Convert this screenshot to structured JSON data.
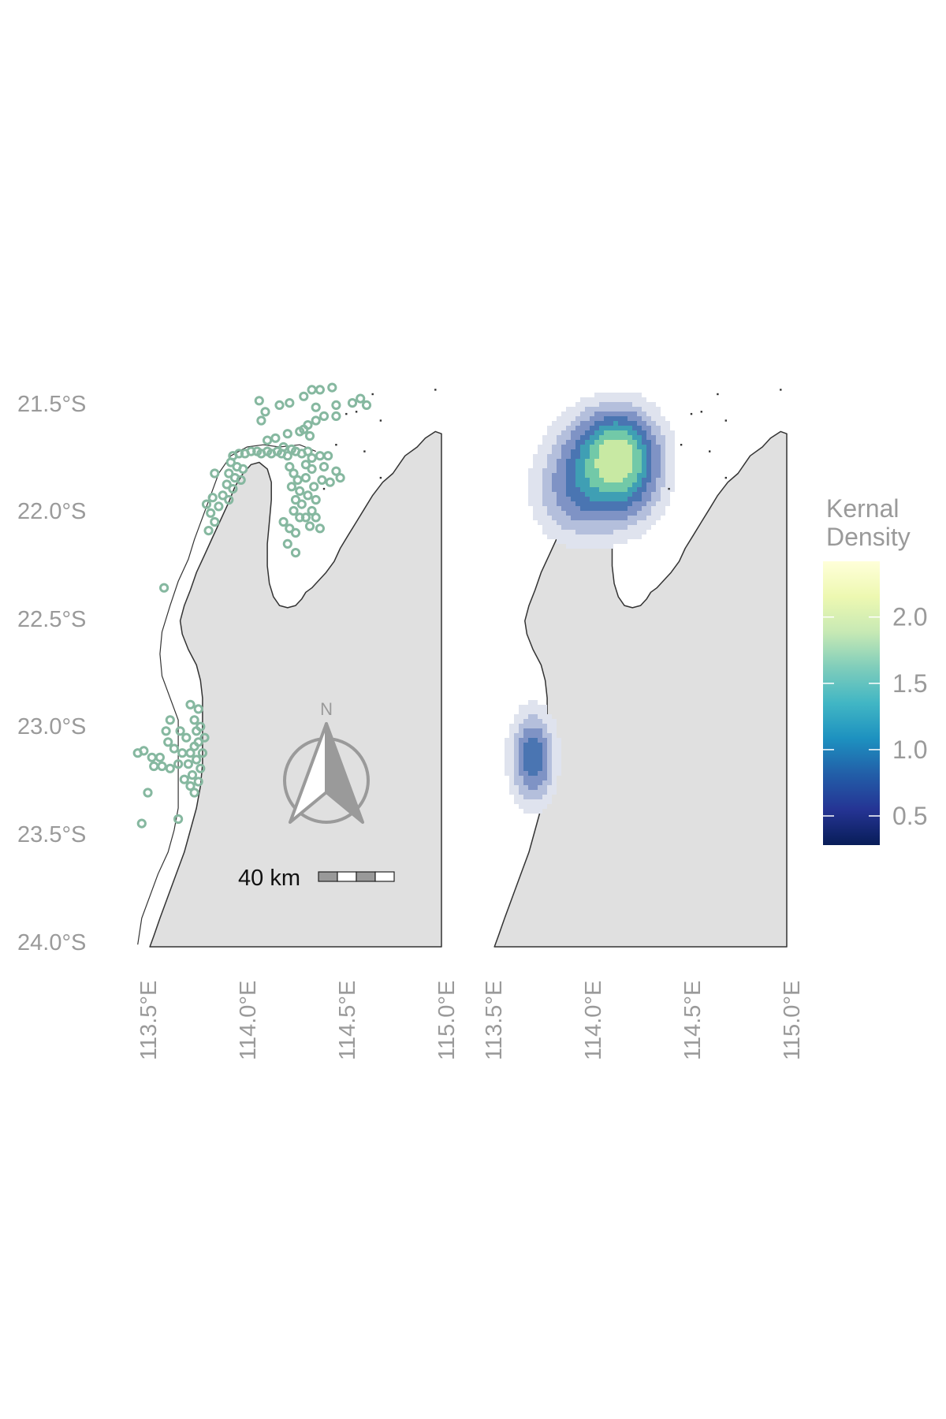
{
  "colors": {
    "land": "#e0e0e0",
    "coast": "#333333",
    "points": "#86b8a0",
    "axis_text": "#9a9a9a",
    "background": "#ffffff",
    "north_arrow": "#9a9a9a"
  },
  "axes": {
    "lat_labels": [
      "21.5°S",
      "22.0°S",
      "22.5°S",
      "23.0°S",
      "23.5°S",
      "24.0°S"
    ],
    "lat_values": [
      -21.5,
      -22.0,
      -22.5,
      -23.0,
      -23.5,
      -24.0
    ],
    "lon_labels": [
      "113.5°E",
      "114.0°E",
      "114.5°E",
      "115.0°E"
    ],
    "lon_values": [
      113.5,
      114.0,
      114.5,
      115.0
    ],
    "lon_range": [
      113.4,
      115.0
    ],
    "lat_range": [
      -24.03,
      -21.47
    ]
  },
  "scale_bar": {
    "label": "40 km"
  },
  "north_arrow": {
    "label": "N"
  },
  "legend": {
    "title_line1": "Kernal",
    "title_line2": "Density",
    "ticks": [
      "2.0",
      "1.5",
      "1.0",
      "0.5"
    ],
    "tick_values": [
      2.0,
      1.5,
      1.0,
      0.5
    ],
    "range": [
      0.28,
      2.42
    ],
    "colors": [
      "#ffffd9",
      "#edf8b1",
      "#c7e9b4",
      "#7fcdbb",
      "#41b6c4",
      "#1d91c0",
      "#225ea8",
      "#253494",
      "#081d58"
    ]
  },
  "chart_data": [
    {
      "type": "scatter",
      "title": "",
      "xlabel": "",
      "ylabel": "",
      "xlim": [
        113.4,
        115.0
      ],
      "ylim": [
        -24.03,
        -21.47
      ],
      "series": [
        {
          "points": [
            [
              114.1,
              -21.55
            ],
            [
              114.13,
              -21.6
            ],
            [
              114.2,
              -21.57
            ],
            [
              114.25,
              -21.56
            ],
            [
              114.32,
              -21.53
            ],
            [
              114.36,
              -21.5
            ],
            [
              114.4,
              -21.5
            ],
            [
              114.38,
              -21.58
            ],
            [
              114.46,
              -21.49
            ],
            [
              114.48,
              -21.57
            ],
            [
              114.56,
              -21.56
            ],
            [
              114.6,
              -21.54
            ],
            [
              114.63,
              -21.57
            ],
            [
              114.42,
              -21.62
            ],
            [
              114.48,
              -21.62
            ],
            [
              114.11,
              -21.64
            ],
            [
              114.14,
              -21.73
            ],
            [
              114.18,
              -21.72
            ],
            [
              114.24,
              -21.7
            ],
            [
              114.3,
              -21.69
            ],
            [
              114.32,
              -21.68
            ],
            [
              114.35,
              -21.71
            ],
            [
              114.34,
              -21.66
            ],
            [
              114.38,
              -21.64
            ],
            [
              113.97,
              -21.8
            ],
            [
              114.0,
              -21.79
            ],
            [
              114.03,
              -21.79
            ],
            [
              114.06,
              -21.78
            ],
            [
              114.09,
              -21.78
            ],
            [
              114.11,
              -21.79
            ],
            [
              114.14,
              -21.78
            ],
            [
              114.16,
              -21.79
            ],
            [
              114.19,
              -21.78
            ],
            [
              114.21,
              -21.79
            ],
            [
              114.24,
              -21.8
            ],
            [
              114.22,
              -21.76
            ],
            [
              114.26,
              -21.77
            ],
            [
              114.28,
              -21.78
            ],
            [
              114.31,
              -21.79
            ],
            [
              114.34,
              -21.78
            ],
            [
              114.36,
              -21.81
            ],
            [
              114.4,
              -21.8
            ],
            [
              114.44,
              -21.8
            ],
            [
              114.42,
              -21.85
            ],
            [
              114.48,
              -21.87
            ],
            [
              114.5,
              -21.9
            ],
            [
              114.45,
              -21.92
            ],
            [
              114.41,
              -21.91
            ],
            [
              113.96,
              -21.83
            ],
            [
              113.99,
              -21.85
            ],
            [
              114.02,
              -21.86
            ],
            [
              113.95,
              -21.88
            ],
            [
              113.98,
              -21.9
            ],
            [
              114.01,
              -21.91
            ],
            [
              113.94,
              -21.93
            ],
            [
              113.97,
              -21.95
            ],
            [
              113.92,
              -21.98
            ],
            [
              113.95,
              -22.0
            ],
            [
              113.9,
              -22.03
            ],
            [
              113.87,
              -21.99
            ],
            [
              113.84,
              -22.02
            ],
            [
              113.86,
              -22.06
            ],
            [
              113.88,
              -22.1
            ],
            [
              113.85,
              -22.14
            ],
            [
              113.88,
              -21.88
            ],
            [
              114.25,
              -21.85
            ],
            [
              114.27,
              -21.88
            ],
            [
              114.29,
              -21.91
            ],
            [
              114.26,
              -21.94
            ],
            [
              114.3,
              -21.96
            ],
            [
              114.28,
              -22.0
            ],
            [
              114.31,
              -22.02
            ],
            [
              114.27,
              -22.05
            ],
            [
              114.3,
              -22.08
            ],
            [
              114.33,
              -21.84
            ],
            [
              114.36,
              -21.86
            ],
            [
              114.33,
              -21.9
            ],
            [
              114.37,
              -21.94
            ],
            [
              114.34,
              -21.98
            ],
            [
              114.38,
              -22.0
            ],
            [
              114.36,
              -22.05
            ],
            [
              114.33,
              -22.08
            ],
            [
              114.38,
              -22.08
            ],
            [
              114.35,
              -22.12
            ],
            [
              114.4,
              -22.13
            ],
            [
              114.25,
              -22.13
            ],
            [
              114.28,
              -22.15
            ],
            [
              114.24,
              -22.2
            ],
            [
              114.28,
              -22.24
            ],
            [
              114.22,
              -22.1
            ],
            [
              113.63,
              -22.4
            ],
            [
              113.76,
              -22.93
            ],
            [
              113.8,
              -22.95
            ],
            [
              113.64,
              -23.05
            ],
            [
              113.66,
              -23.0
            ],
            [
              113.71,
              -23.05
            ],
            [
              113.74,
              -23.08
            ],
            [
              113.78,
              -23.0
            ],
            [
              113.81,
              -23.03
            ],
            [
              113.8,
              -23.1
            ],
            [
              113.76,
              -23.15
            ],
            [
              113.79,
              -23.18
            ],
            [
              113.81,
              -23.22
            ],
            [
              113.77,
              -23.25
            ],
            [
              113.8,
              -23.28
            ],
            [
              113.76,
              -23.3
            ],
            [
              113.73,
              -23.27
            ],
            [
              113.7,
              -23.2
            ],
            [
              113.72,
              -23.15
            ],
            [
              113.75,
              -23.2
            ],
            [
              113.78,
              -23.12
            ],
            [
              113.82,
              -23.15
            ],
            [
              113.79,
              -23.05
            ],
            [
              113.83,
              -23.08
            ],
            [
              113.5,
              -23.15
            ],
            [
              113.53,
              -23.14
            ],
            [
              113.57,
              -23.17
            ],
            [
              113.61,
              -23.17
            ],
            [
              113.58,
              -23.21
            ],
            [
              113.62,
              -23.21
            ],
            [
              113.66,
              -23.22
            ],
            [
              113.68,
              -23.13
            ],
            [
              113.65,
              -23.1
            ],
            [
              113.55,
              -23.33
            ],
            [
              113.52,
              -23.47
            ],
            [
              113.7,
              -23.45
            ],
            [
              113.78,
              -23.33
            ]
          ]
        }
      ]
    },
    {
      "type": "heatmap",
      "title": "",
      "xlabel": "",
      "ylabel": "",
      "xlim": [
        113.4,
        115.0
      ],
      "ylim": [
        -24.03,
        -21.47
      ],
      "colorbar_range": [
        0.28,
        2.42
      ],
      "kernels": [
        {
          "lon": 114.21,
          "lat": -21.86,
          "sigma_lon": 0.135,
          "sigma_lat": 0.17,
          "weight": 1.7
        },
        {
          "lon": 113.96,
          "lat": -21.95,
          "sigma_lon": 0.15,
          "sigma_lat": 0.17,
          "weight": 1.15
        },
        {
          "lon": 114.12,
          "lat": -21.72,
          "sigma_lon": 0.15,
          "sigma_lat": 0.12,
          "weight": 0.85
        },
        {
          "lon": 113.75,
          "lat": -23.17,
          "sigma_lon": 0.08,
          "sigma_lat": 0.15,
          "weight": 1.5
        }
      ],
      "contour_levels": [
        0.35,
        0.65,
        0.95,
        1.25,
        1.55,
        1.85,
        2.15
      ],
      "level_colors": [
        "#dfe3ee",
        "#b4bfdc",
        "#7f93c5",
        "#4a75b2",
        "#3f9fb4",
        "#72c9a8",
        "#c8e9a3",
        "#f7fbc3"
      ]
    }
  ]
}
